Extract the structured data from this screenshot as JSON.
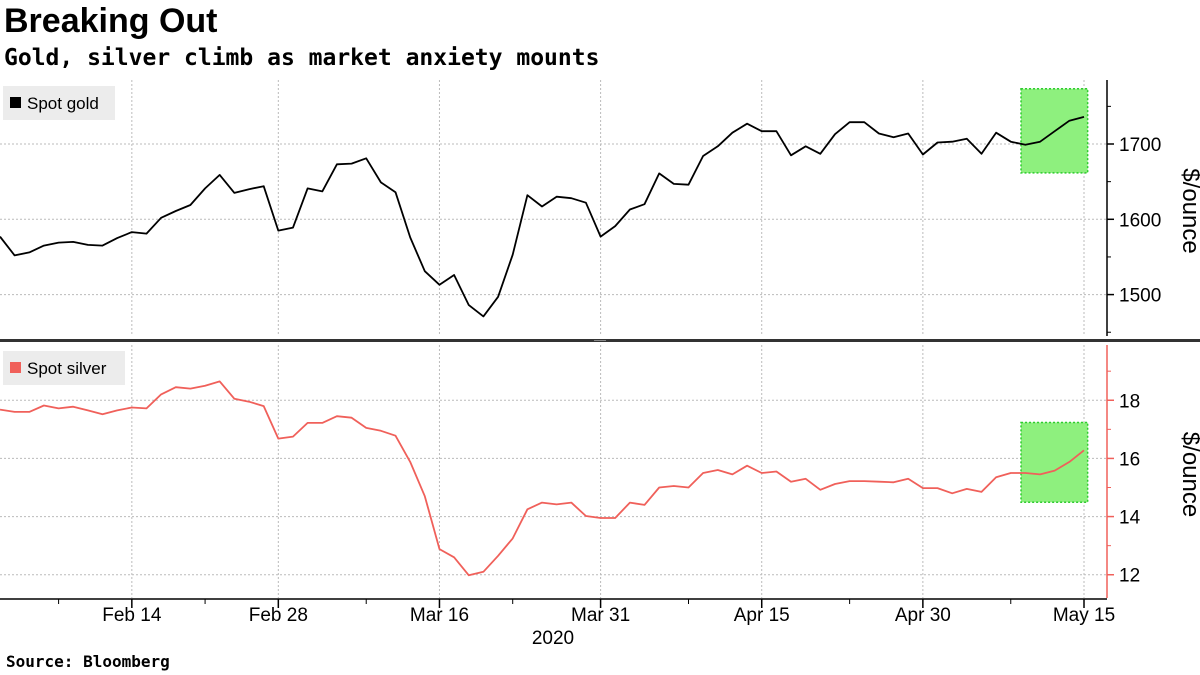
{
  "title": "Breaking Out",
  "subtitle": "Gold, silver climb as market anxiety mounts",
  "source": "Source:  Bloomberg",
  "colors": {
    "gold_line": "#000000",
    "silver_line": "#f0605a",
    "highlight_fill": "#8ef07e",
    "highlight_border": "#2ecc2e",
    "grid": "#bbbbbb",
    "divider": "#333333"
  },
  "chart_data": [
    {
      "type": "line",
      "name": "gold",
      "legend": "Spot gold",
      "ylabel": "$/ounce",
      "ylim": [
        1445,
        1785
      ],
      "yticks": [
        1500,
        1600,
        1700
      ],
      "ytick_labels": [
        "1500",
        "1600",
        "1700"
      ],
      "series": [
        {
          "name": "Spot gold",
          "values": [
            1577,
            1552,
            1556,
            1565,
            1569,
            1570,
            1566,
            1565,
            1575,
            1583,
            1581,
            1602,
            1611,
            1619,
            1641,
            1659,
            1635,
            1640,
            1644,
            1585,
            1589,
            1641,
            1637,
            1673,
            1674,
            1681,
            1649,
            1636,
            1576,
            1531,
            1513,
            1526,
            1486,
            1471,
            1497,
            1553,
            1632,
            1617,
            1630,
            1628,
            1622,
            1577,
            1591,
            1613,
            1620,
            1661,
            1647,
            1646,
            1684,
            1697,
            1715,
            1727,
            1717,
            1717,
            1685,
            1697,
            1687,
            1713,
            1729,
            1729,
            1714,
            1709,
            1714,
            1686,
            1702,
            1703,
            1707,
            1687,
            1715,
            1703,
            1699,
            1703,
            1717,
            1731,
            1736
          ]
        }
      ]
    },
    {
      "type": "line",
      "name": "silver",
      "legend": "Spot silver",
      "ylabel": "$/ounce",
      "ylim": [
        11.2,
        19.9
      ],
      "yticks": [
        12,
        14,
        16,
        18
      ],
      "ytick_labels": [
        "12",
        "14",
        "16",
        "18"
      ],
      "series": [
        {
          "name": "Spot silver",
          "values": [
            17.68,
            17.6,
            17.6,
            17.82,
            17.72,
            17.78,
            17.65,
            17.52,
            17.65,
            17.75,
            17.72,
            18.2,
            18.45,
            18.4,
            18.5,
            18.65,
            18.05,
            17.95,
            17.8,
            16.68,
            16.75,
            17.22,
            17.22,
            17.45,
            17.4,
            17.05,
            16.95,
            16.78,
            15.88,
            14.7,
            12.88,
            12.6,
            11.98,
            12.1,
            12.65,
            13.25,
            14.25,
            14.48,
            14.42,
            14.48,
            14.02,
            13.95,
            13.95,
            14.48,
            14.4,
            15.0,
            15.05,
            15.0,
            15.5,
            15.6,
            15.45,
            15.75,
            15.5,
            15.55,
            15.2,
            15.3,
            14.92,
            15.12,
            15.22,
            15.22,
            15.2,
            15.18,
            15.3,
            14.98,
            14.98,
            14.8,
            14.95,
            14.85,
            15.35,
            15.5,
            15.5,
            15.45,
            15.58,
            15.88,
            16.28
          ]
        }
      ]
    }
  ],
  "x_axis": {
    "ticks": [
      {
        "label": "Feb 14",
        "index": 9
      },
      {
        "label": "Feb 28",
        "index": 19
      },
      {
        "label": "Mar 16",
        "index": 30
      },
      {
        "label": "Mar 31",
        "index": 41
      },
      {
        "label": "Apr 15",
        "index": 52
      },
      {
        "label": "Apr 30",
        "index": 63
      },
      {
        "label": "May 15",
        "index": 74
      }
    ],
    "minor_tick_indices": [
      4,
      14,
      25,
      35,
      47,
      58,
      69
    ],
    "year_label": "2020",
    "highlight_start_index": 71,
    "highlight_end_index": 75
  }
}
